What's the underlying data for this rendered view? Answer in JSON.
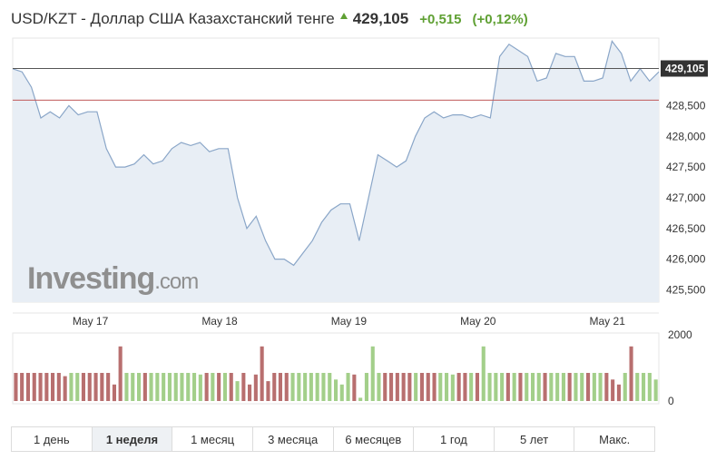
{
  "header": {
    "title": "USD/KZT - Доллар США Казахстанский тенге",
    "price": "429,105",
    "change": "+0,515",
    "change_pct": "(+0,12%)"
  },
  "logo": {
    "main": "Investing",
    "suffix": ".com"
  },
  "tabs": [
    "1 день",
    "1 неделя",
    "1 месяц",
    "3 месяца",
    "6 месяцев",
    "1 год",
    "5 лет",
    "Макс."
  ],
  "active_tab_index": 1,
  "colors": {
    "line": "#8aa6c8",
    "area": "#e8eef5",
    "up": "#a3cf8a",
    "down": "#b86f6f",
    "current_line": "#555555",
    "prev_close_line": "#c05a5a"
  },
  "chart_data": {
    "type": "line",
    "price_axis": {
      "ylim": [
        425300,
        429600
      ],
      "ticks": [
        "425,500",
        "426,000",
        "426,500",
        "427,000",
        "427,500",
        "428,000",
        "428,500"
      ]
    },
    "current_price_label": "429,105",
    "current_price": 429105,
    "previous_close": 428590,
    "x_labels": [
      "May 17",
      "May 18",
      "May 19",
      "May 20",
      "May 21"
    ],
    "x_label_positions": [
      0.5,
      8.5,
      16.5,
      24.5,
      32.5
    ],
    "x_count": 40,
    "values": [
      429100,
      429050,
      428800,
      428300,
      428400,
      428300,
      428500,
      428350,
      428400,
      428400,
      427800,
      427500,
      427500,
      427550,
      427700,
      427550,
      427600,
      427800,
      427900,
      427850,
      427900,
      427750,
      427800,
      427800,
      427000,
      426500,
      426700,
      426300,
      426000,
      426000,
      425900,
      426100,
      426300,
      426600,
      426800,
      426900,
      426900,
      426300,
      427000,
      427700,
      427600,
      427500,
      427600,
      428000,
      428300,
      428400,
      428300,
      428350,
      428350,
      428300,
      428350,
      428300,
      429300,
      429500,
      429400,
      429300,
      428900,
      428950,
      429350,
      429300,
      429300,
      428900,
      428900,
      428950,
      429550,
      429350,
      428900,
      429100,
      428900,
      429050
    ],
    "volume_axis": {
      "ticks": [
        "2000",
        "0"
      ],
      "ylim": [
        0,
        2000
      ]
    },
    "volume": [
      {
        "v": 850,
        "up": false
      },
      {
        "v": 850,
        "up": false
      },
      {
        "v": 850,
        "up": false
      },
      {
        "v": 850,
        "up": false
      },
      {
        "v": 850,
        "up": false
      },
      {
        "v": 850,
        "up": false
      },
      {
        "v": 850,
        "up": false
      },
      {
        "v": 850,
        "up": false
      },
      {
        "v": 750,
        "up": false
      },
      {
        "v": 850,
        "up": true
      },
      {
        "v": 850,
        "up": true
      },
      {
        "v": 850,
        "up": false
      },
      {
        "v": 850,
        "up": false
      },
      {
        "v": 850,
        "up": false
      },
      {
        "v": 850,
        "up": false
      },
      {
        "v": 850,
        "up": false
      },
      {
        "v": 500,
        "up": false
      },
      {
        "v": 1650,
        "up": false
      },
      {
        "v": 850,
        "up": true
      },
      {
        "v": 850,
        "up": true
      },
      {
        "v": 850,
        "up": true
      },
      {
        "v": 850,
        "up": false
      },
      {
        "v": 850,
        "up": true
      },
      {
        "v": 850,
        "up": true
      },
      {
        "v": 850,
        "up": true
      },
      {
        "v": 850,
        "up": true
      },
      {
        "v": 850,
        "up": true
      },
      {
        "v": 850,
        "up": true
      },
      {
        "v": 850,
        "up": true
      },
      {
        "v": 850,
        "up": true
      },
      {
        "v": 800,
        "up": true
      },
      {
        "v": 850,
        "up": false
      },
      {
        "v": 850,
        "up": true
      },
      {
        "v": 850,
        "up": false
      },
      {
        "v": 850,
        "up": true
      },
      {
        "v": 850,
        "up": false
      },
      {
        "v": 600,
        "up": true
      },
      {
        "v": 850,
        "up": false
      },
      {
        "v": 500,
        "up": false
      },
      {
        "v": 800,
        "up": false
      },
      {
        "v": 1650,
        "up": false
      },
      {
        "v": 600,
        "up": false
      },
      {
        "v": 850,
        "up": false
      },
      {
        "v": 850,
        "up": false
      },
      {
        "v": 850,
        "up": false
      },
      {
        "v": 850,
        "up": true
      },
      {
        "v": 850,
        "up": true
      },
      {
        "v": 850,
        "up": true
      },
      {
        "v": 850,
        "up": true
      },
      {
        "v": 850,
        "up": true
      },
      {
        "v": 850,
        "up": true
      },
      {
        "v": 850,
        "up": true
      },
      {
        "v": 650,
        "up": true
      },
      {
        "v": 500,
        "up": true
      },
      {
        "v": 850,
        "up": true
      },
      {
        "v": 800,
        "up": false
      },
      {
        "v": 100,
        "up": true
      },
      {
        "v": 850,
        "up": true
      },
      {
        "v": 1650,
        "up": true
      },
      {
        "v": 850,
        "up": true
      },
      {
        "v": 850,
        "up": false
      },
      {
        "v": 850,
        "up": false
      },
      {
        "v": 850,
        "up": false
      },
      {
        "v": 850,
        "up": false
      },
      {
        "v": 850,
        "up": false
      },
      {
        "v": 850,
        "up": true
      },
      {
        "v": 850,
        "up": false
      },
      {
        "v": 850,
        "up": false
      },
      {
        "v": 850,
        "up": false
      },
      {
        "v": 850,
        "up": true
      },
      {
        "v": 850,
        "up": true
      },
      {
        "v": 800,
        "up": true
      },
      {
        "v": 850,
        "up": false
      },
      {
        "v": 850,
        "up": false
      },
      {
        "v": 850,
        "up": true
      },
      {
        "v": 850,
        "up": false
      },
      {
        "v": 1650,
        "up": true
      },
      {
        "v": 850,
        "up": true
      },
      {
        "v": 850,
        "up": true
      },
      {
        "v": 850,
        "up": true
      },
      {
        "v": 850,
        "up": false
      },
      {
        "v": 850,
        "up": true
      },
      {
        "v": 850,
        "up": false
      },
      {
        "v": 850,
        "up": true
      },
      {
        "v": 850,
        "up": true
      },
      {
        "v": 850,
        "up": true
      },
      {
        "v": 850,
        "up": false
      },
      {
        "v": 850,
        "up": true
      },
      {
        "v": 850,
        "up": true
      },
      {
        "v": 850,
        "up": true
      },
      {
        "v": 850,
        "up": false
      },
      {
        "v": 850,
        "up": true
      },
      {
        "v": 850,
        "up": true
      },
      {
        "v": 850,
        "up": false
      },
      {
        "v": 850,
        "up": true
      },
      {
        "v": 850,
        "up": true
      },
      {
        "v": 850,
        "up": false
      },
      {
        "v": 650,
        "up": false
      },
      {
        "v": 500,
        "up": false
      },
      {
        "v": 850,
        "up": true
      },
      {
        "v": 1650,
        "up": false
      },
      {
        "v": 850,
        "up": true
      },
      {
        "v": 850,
        "up": true
      },
      {
        "v": 850,
        "up": true
      },
      {
        "v": 650,
        "up": true
      }
    ]
  }
}
